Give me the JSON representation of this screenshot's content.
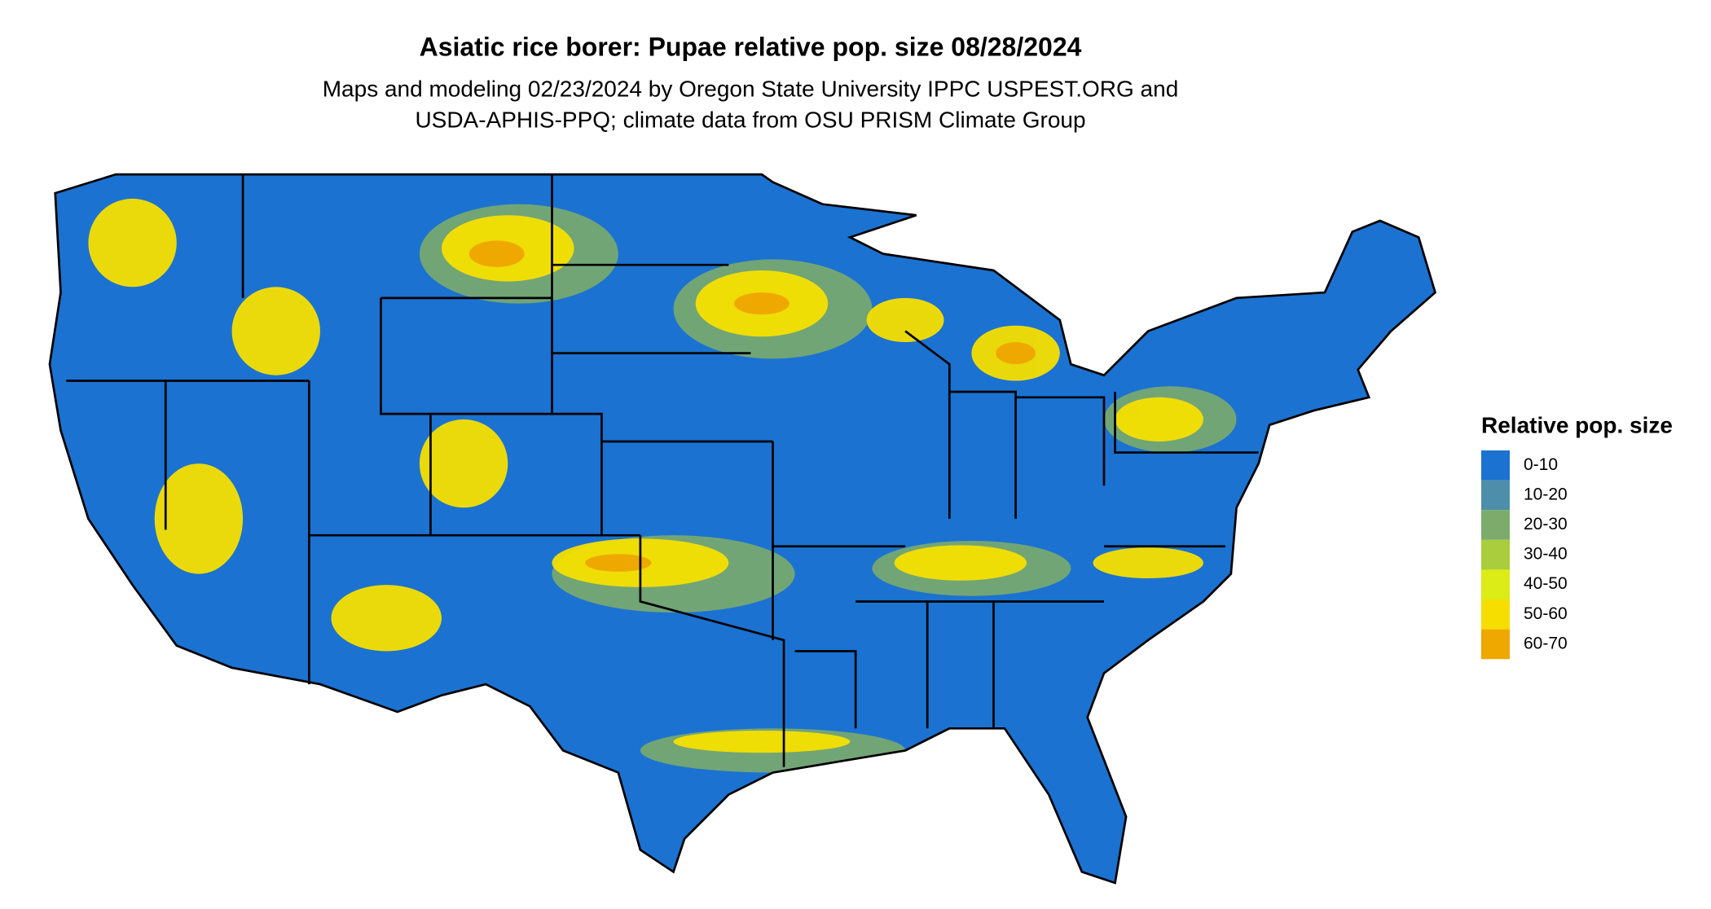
{
  "title": "Asiatic rice borer: Pupae relative pop. size 08/28/2024",
  "subtitle": [
    "Maps and modeling 02/23/2024 by Oregon State University IPPC USPEST.ORG and",
    "USDA-APHIS-PPQ; climate data from OSU PRISM Climate Group"
  ],
  "legend": {
    "title": "Relative pop. size",
    "items": [
      {
        "label": "0-10",
        "color": "#1b72d1"
      },
      {
        "label": "10-20",
        "color": "#4d8fab"
      },
      {
        "label": "20-30",
        "color": "#7cab6c"
      },
      {
        "label": "30-40",
        "color": "#a9cd3c"
      },
      {
        "label": "40-50",
        "color": "#dcec17"
      },
      {
        "label": "50-60",
        "color": "#f6df00"
      },
      {
        "label": "60-70",
        "color": "#efa800"
      }
    ]
  }
}
